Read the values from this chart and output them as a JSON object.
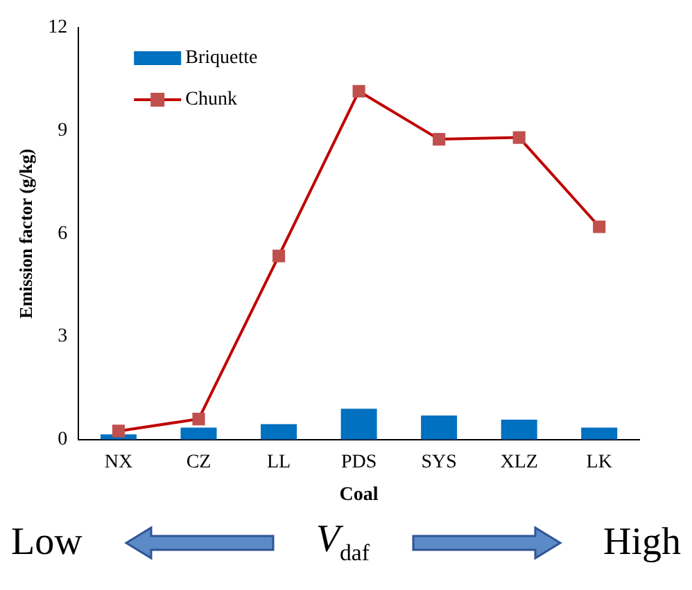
{
  "chart_data": {
    "type": "bar",
    "xlabel": "Coal",
    "ylabel": "Emission factor (g/kg)",
    "categories": [
      "NX",
      "CZ",
      "LL",
      "PDS",
      "SYS",
      "XLZ",
      "LK"
    ],
    "series": [
      {
        "name": "Briquette",
        "color": "#0070c0",
        "values": [
          0.15,
          0.35,
          0.45,
          0.9,
          0.7,
          0.58,
          0.35
        ]
      },
      {
        "name": "Chunk",
        "type": "line",
        "color": "#c00000",
        "marker": "square",
        "values": [
          0.25,
          0.6,
          5.35,
          10.15,
          8.75,
          8.8,
          6.2
        ]
      }
    ],
    "ylim": [
      0,
      12
    ],
    "yticks": [
      0,
      3,
      6,
      9,
      12
    ],
    "grid": false,
    "legend": "top left",
    "annotations": [
      "Low",
      "V$_{daf}$",
      "High"
    ]
  }
}
